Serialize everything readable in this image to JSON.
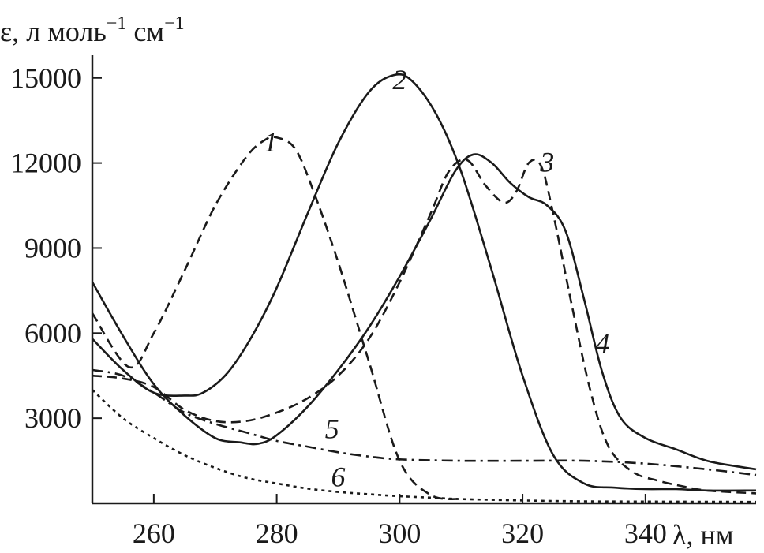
{
  "chart_data": {
    "type": "line",
    "ylabel": "ε, л моль",
    "ylabel_unit2": " см",
    "ylabel_sup": "−1",
    "xlabel": "λ, нм",
    "xlim": [
      250,
      358
    ],
    "ylim": [
      0,
      15800
    ],
    "xticks": [
      260,
      280,
      300,
      320,
      340
    ],
    "yticks": [
      3000,
      6000,
      9000,
      12000,
      15000
    ],
    "grid": false,
    "legend": "none",
    "series": [
      {
        "name": "1",
        "style": "dashed",
        "x": [
          250,
          256,
          260,
          265,
          270,
          275,
          278,
          280,
          283,
          286,
          290,
          295,
          300,
          305,
          310
        ],
        "y": [
          6700,
          4800,
          6000,
          8200,
          10500,
          12200,
          12800,
          12900,
          12500,
          11000,
          8500,
          5000,
          1500,
          300,
          150
        ]
      },
      {
        "name": "2",
        "style": "solid",
        "x": [
          250,
          255,
          260,
          265,
          268,
          272,
          276,
          280,
          285,
          290,
          295,
          299,
          302,
          306,
          310,
          315,
          320,
          325,
          330,
          335,
          340,
          345,
          350,
          358
        ],
        "y": [
          5800,
          4700,
          3900,
          3800,
          3900,
          4600,
          5900,
          7600,
          10200,
          12700,
          14500,
          15100,
          14900,
          13700,
          11700,
          8200,
          4500,
          1700,
          700,
          550,
          500,
          500,
          450,
          450
        ]
      },
      {
        "name": "3",
        "style": "dashed",
        "x": [
          250,
          255,
          260,
          265,
          270,
          275,
          280,
          285,
          290,
          295,
          300,
          305,
          308,
          311,
          314,
          317,
          319,
          321,
          323,
          325,
          328,
          331,
          334,
          338,
          342,
          346,
          350,
          358
        ],
        "y": [
          4500,
          4400,
          4100,
          3300,
          2900,
          2900,
          3200,
          3700,
          4500,
          5800,
          7800,
          10200,
          11700,
          12100,
          11200,
          10600,
          11000,
          12000,
          11900,
          10200,
          7000,
          4000,
          2000,
          1100,
          800,
          600,
          450,
          350
        ]
      },
      {
        "name": "4",
        "style": "solid",
        "x": [
          250,
          255,
          260,
          265,
          270,
          274,
          277,
          280,
          285,
          290,
          295,
          300,
          305,
          309,
          312,
          315,
          318,
          321,
          324,
          327,
          330,
          333,
          336,
          340,
          345,
          350,
          355,
          358
        ],
        "y": [
          7800,
          5900,
          4200,
          3100,
          2300,
          2150,
          2100,
          2400,
          3400,
          4700,
          6200,
          8000,
          10000,
          11700,
          12300,
          12000,
          11300,
          10800,
          10500,
          9600,
          7200,
          4600,
          3000,
          2300,
          1900,
          1500,
          1300,
          1200
        ]
      },
      {
        "name": "5",
        "style": "dashdot",
        "x": [
          250,
          255,
          260,
          265,
          270,
          275,
          280,
          285,
          290,
          295,
          300,
          310,
          320,
          330,
          340,
          350,
          358
        ],
        "y": [
          4700,
          4500,
          3900,
          3200,
          2800,
          2500,
          2200,
          2000,
          1800,
          1650,
          1550,
          1500,
          1500,
          1500,
          1400,
          1200,
          1000
        ]
      },
      {
        "name": "6",
        "style": "dotted",
        "x": [
          250,
          255,
          260,
          265,
          270,
          275,
          280,
          285,
          290,
          295,
          300,
          305,
          310,
          320,
          330,
          340,
          358
        ],
        "y": [
          4000,
          3000,
          2300,
          1700,
          1250,
          900,
          700,
          520,
          400,
          320,
          250,
          200,
          150,
          100,
          70,
          60,
          50
        ]
      }
    ],
    "labels": [
      {
        "text": "1",
        "x": 279,
        "y": 12400
      },
      {
        "text": "2",
        "x": 300,
        "y": 14600
      },
      {
        "text": "3",
        "x": 324,
        "y": 11700
      },
      {
        "text": "4",
        "x": 333,
        "y": 5300
      },
      {
        "text": "5",
        "x": 289,
        "y": 2300
      },
      {
        "text": "6",
        "x": 290,
        "y": 600
      }
    ]
  }
}
